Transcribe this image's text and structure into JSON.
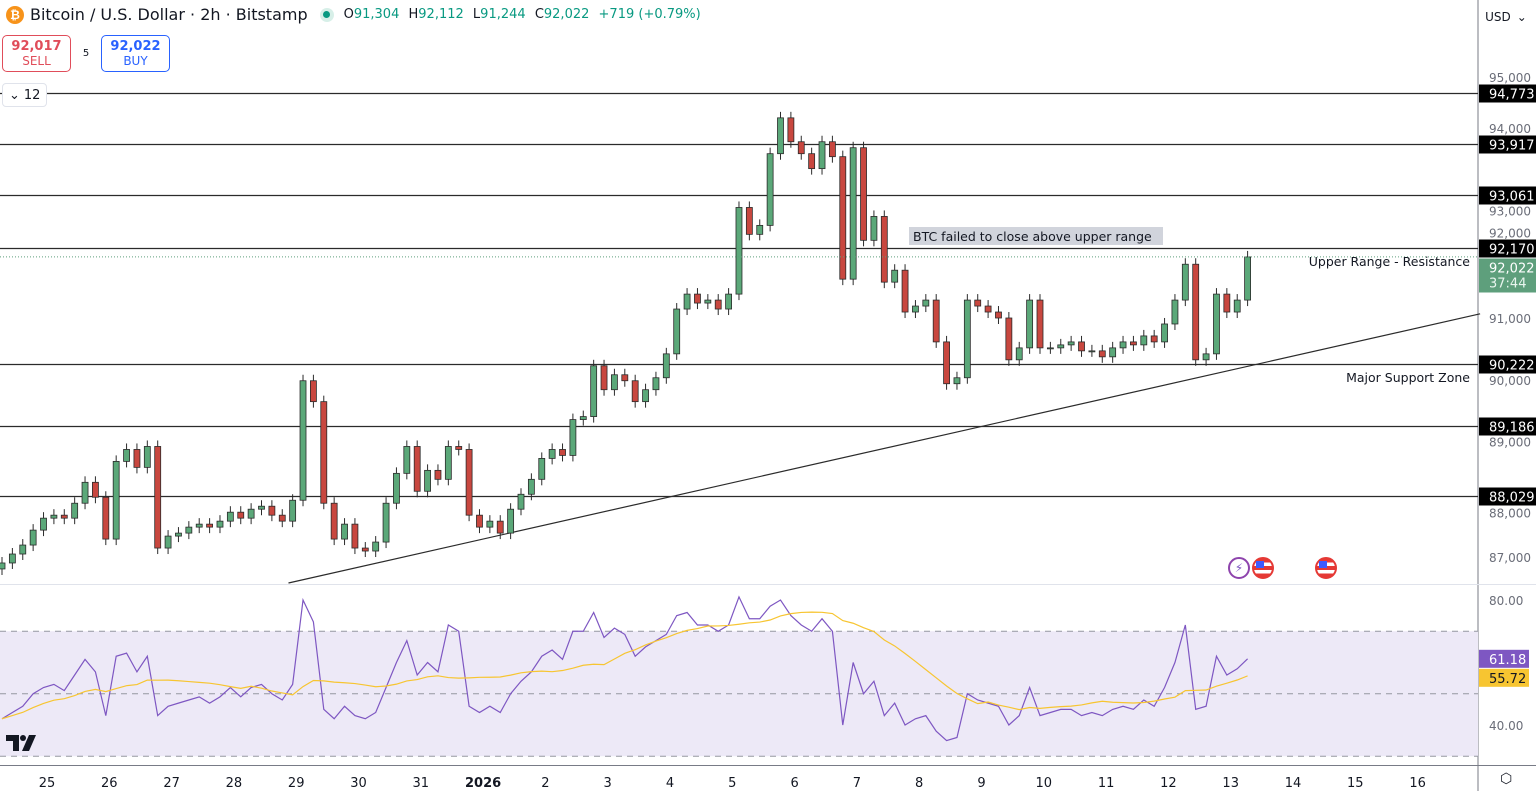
{
  "header": {
    "symbol_icon": "bitcoin-icon",
    "title": "Bitcoin / U.S. Dollar · 2h · Bitstamp",
    "market_status": "market-open-dot",
    "ohlc": {
      "o_label": "O",
      "o": "91,304",
      "h_label": "H",
      "h": "92,112",
      "l_label": "L",
      "l": "91,244",
      "c_label": "C",
      "c": "92,022",
      "change": "+719 (+0.79%)"
    }
  },
  "trade": {
    "sell_price": "92,017",
    "sell_label": "SELL",
    "spread": "5",
    "buy_price": "92,022",
    "buy_label": "BUY"
  },
  "indicators_toggle": {
    "icon": "chevron-down-icon",
    "count": "12"
  },
  "currency": {
    "value": "USD",
    "icon": "chevron-down-icon"
  },
  "logo": "TV",
  "colors": {
    "up": "#5ba879",
    "down": "#c8473f",
    "outline": "#2b2b2b",
    "rsi": "#7e57c2",
    "rsi_ma": "#f7c531",
    "rsi_band": "#ede9f7",
    "last_price": "#5e9f7c"
  },
  "chart_data": {
    "type": "candlestick",
    "interval_note": "candles drawn from close series",
    "price_axis": {
      "ylim": [
        86600,
        95500
      ],
      "ticks": [
        "95,000",
        "94,000",
        "93,000",
        "92,000",
        "91,000",
        "90,000",
        "89,000",
        "88,000",
        "87,000"
      ],
      "tick_values": [
        95000,
        94000,
        93000,
        92000,
        91000,
        90000,
        89000,
        88000,
        87000
      ]
    },
    "x_axis": {
      "ticks": [
        "25",
        "26",
        "27",
        "28",
        "29",
        "30",
        "31",
        "2026",
        "2",
        "3",
        "4",
        "5",
        "6",
        "7",
        "8",
        "9",
        "10",
        "11",
        "12",
        "13",
        "14",
        "15",
        "16"
      ]
    },
    "closes": [
      86900,
      87050,
      87200,
      87450,
      87650,
      87700,
      87650,
      87900,
      88250,
      88000,
      87300,
      88600,
      88800,
      88500,
      88850,
      87150,
      87350,
      87400,
      87500,
      87550,
      87500,
      87600,
      87750,
      87650,
      87800,
      87850,
      87700,
      87600,
      87950,
      89950,
      89600,
      87900,
      87300,
      87550,
      87150,
      87100,
      87250,
      87900,
      88400,
      88850,
      88100,
      88450,
      88300,
      88850,
      88800,
      87700,
      87500,
      87600,
      87400,
      87800,
      88050,
      88300,
      88650,
      88800,
      88700,
      89300,
      89350,
      90200,
      89800,
      90050,
      89950,
      89600,
      89800,
      90000,
      90400,
      91150,
      91400,
      91250,
      91300,
      91150,
      91400,
      92850,
      92400,
      92550,
      93750,
      94350,
      93950,
      93750,
      93500,
      93950,
      93700,
      91650,
      93850,
      92300,
      92700,
      91600,
      91800,
      91100,
      91200,
      91300,
      90600,
      89900,
      90000,
      91300,
      91200,
      91100,
      91000,
      90300,
      90500,
      91300,
      90500,
      90500,
      90550,
      90600,
      90450,
      90450,
      90350,
      90500,
      90600,
      90550,
      90700,
      90600,
      90900,
      91300,
      91900,
      90300,
      90400,
      91400,
      91100,
      91300,
      92022
    ],
    "levels": [
      {
        "price": 94773,
        "label": "94,773"
      },
      {
        "price": 93917,
        "label": "93,917"
      },
      {
        "price": 93061,
        "label": "93,061"
      },
      {
        "price": 92170,
        "label": "92,170"
      },
      {
        "price": 90222,
        "label": "90,222"
      },
      {
        "price": 89186,
        "label": "89,186"
      },
      {
        "price": 88029,
        "label": "88,029"
      }
    ],
    "last_price": {
      "label": "92,022",
      "countdown": "37:44",
      "price": 92022
    },
    "trendline": {
      "from": {
        "bar": 27.6,
        "price": 86565
      },
      "to": {
        "bar": 142.4,
        "price": 91070
      }
    },
    "annotations": [
      {
        "text": "BTC failed to close above upper range"
      },
      {
        "text": "Upper Range - Resistance"
      },
      {
        "text": "Major Support Zone"
      }
    ],
    "rsi": {
      "ylim": [
        25,
        85
      ],
      "ticks": [
        "80.00",
        "40.00"
      ],
      "tick_values": [
        80,
        40
      ],
      "band": [
        30,
        70
      ],
      "mid": 50,
      "values": [
        42,
        44,
        46,
        50,
        52,
        53,
        51,
        56,
        61,
        57,
        43,
        62,
        63,
        57,
        62,
        43,
        46,
        47,
        48,
        49,
        47,
        49,
        52,
        49,
        52,
        53,
        50,
        48,
        53,
        80,
        73,
        45,
        42,
        46,
        43,
        42,
        44,
        52,
        60,
        67,
        56,
        60,
        57,
        72,
        70,
        46,
        44,
        46,
        44,
        50,
        54,
        57,
        62,
        64,
        61,
        70,
        70,
        76,
        68,
        71,
        69,
        62,
        65,
        67,
        69,
        75,
        76,
        72,
        72,
        70,
        72,
        81,
        74,
        74,
        78,
        80,
        75,
        72,
        70,
        74,
        70,
        40,
        60,
        50,
        54,
        43,
        47,
        40,
        42,
        43,
        38,
        35,
        36,
        50,
        48,
        47,
        46,
        40,
        43,
        52,
        43,
        44,
        45,
        45,
        43,
        44,
        43,
        45,
        46,
        45,
        48,
        46,
        52,
        60,
        72,
        45,
        46,
        62,
        56,
        58,
        61.18
      ],
      "value_label": "61.18",
      "ma_label": "55.72",
      "ma_value": 55.72
    }
  }
}
